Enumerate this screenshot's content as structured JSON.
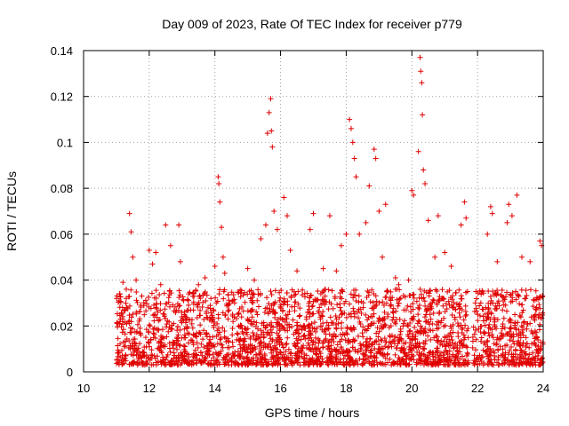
{
  "chart_data": {
    "type": "scatter",
    "title": "Day 009 of 2023, Rate Of TEC Index for receiver p779",
    "xlabel": "GPS time / hours",
    "ylabel": "ROTI / TECUs",
    "xlim": [
      10,
      24
    ],
    "ylim": [
      0,
      0.14
    ],
    "xticks": [
      10,
      12,
      14,
      16,
      18,
      20,
      22,
      24
    ],
    "xtick_labels": [
      "10",
      "12",
      "14",
      "16",
      "18",
      "20",
      "22",
      "24"
    ],
    "yticks": [
      0,
      0.02,
      0.04,
      0.06,
      0.08,
      0.1,
      0.12,
      0.14
    ],
    "ytick_labels": [
      "0",
      "0.02",
      "0.04",
      "0.06",
      "0.08",
      "0.1",
      "0.12",
      "0.14"
    ],
    "grid": true,
    "marker": "+",
    "color": "#e00000",
    "data_gaps_hours": [
      [
        14.45,
        14.5
      ],
      [
        21.72,
        21.85
      ]
    ],
    "series": [
      {
        "name": "ROTI p779",
        "points": [
          [
            11.05,
            0.021
          ],
          [
            11.1,
            0.034
          ],
          [
            11.2,
            0.039
          ],
          [
            11.3,
            0.036
          ],
          [
            11.4,
            0.069
          ],
          [
            11.45,
            0.061
          ],
          [
            11.5,
            0.05
          ],
          [
            11.6,
            0.04
          ],
          [
            12.0,
            0.053
          ],
          [
            12.1,
            0.047
          ],
          [
            12.2,
            0.052
          ],
          [
            12.35,
            0.038
          ],
          [
            12.5,
            0.064
          ],
          [
            12.65,
            0.055
          ],
          [
            12.9,
            0.064
          ],
          [
            12.95,
            0.048
          ],
          [
            13.2,
            0.034
          ],
          [
            13.5,
            0.038
          ],
          [
            13.7,
            0.041
          ],
          [
            14.0,
            0.046
          ],
          [
            14.1,
            0.085
          ],
          [
            14.12,
            0.082
          ],
          [
            14.15,
            0.074
          ],
          [
            14.2,
            0.063
          ],
          [
            14.25,
            0.05
          ],
          [
            14.3,
            0.043
          ],
          [
            14.6,
            0.03
          ],
          [
            15.0,
            0.045
          ],
          [
            15.2,
            0.04
          ],
          [
            15.4,
            0.058
          ],
          [
            15.55,
            0.064
          ],
          [
            15.6,
            0.104
          ],
          [
            15.65,
            0.113
          ],
          [
            15.7,
            0.119
          ],
          [
            15.72,
            0.105
          ],
          [
            15.75,
            0.098
          ],
          [
            15.8,
            0.07
          ],
          [
            15.9,
            0.062
          ],
          [
            16.1,
            0.076
          ],
          [
            16.2,
            0.068
          ],
          [
            16.3,
            0.053
          ],
          [
            16.5,
            0.044
          ],
          [
            16.9,
            0.062
          ],
          [
            17.0,
            0.069
          ],
          [
            17.3,
            0.045
          ],
          [
            17.5,
            0.068
          ],
          [
            17.7,
            0.044
          ],
          [
            17.85,
            0.055
          ],
          [
            18.0,
            0.06
          ],
          [
            18.1,
            0.11
          ],
          [
            18.15,
            0.106
          ],
          [
            18.2,
            0.1
          ],
          [
            18.25,
            0.093
          ],
          [
            18.3,
            0.085
          ],
          [
            18.4,
            0.06
          ],
          [
            18.6,
            0.065
          ],
          [
            18.7,
            0.081
          ],
          [
            18.85,
            0.097
          ],
          [
            18.9,
            0.093
          ],
          [
            19.0,
            0.07
          ],
          [
            19.1,
            0.05
          ],
          [
            19.2,
            0.073
          ],
          [
            19.5,
            0.041
          ],
          [
            19.6,
            0.038
          ],
          [
            19.9,
            0.04
          ],
          [
            20.0,
            0.079
          ],
          [
            20.05,
            0.077
          ],
          [
            20.2,
            0.096
          ],
          [
            20.25,
            0.137
          ],
          [
            20.27,
            0.131
          ],
          [
            20.3,
            0.126
          ],
          [
            20.32,
            0.112
          ],
          [
            20.35,
            0.088
          ],
          [
            20.4,
            0.082
          ],
          [
            20.5,
            0.066
          ],
          [
            20.7,
            0.05
          ],
          [
            20.8,
            0.068
          ],
          [
            21.0,
            0.052
          ],
          [
            21.2,
            0.046
          ],
          [
            21.5,
            0.064
          ],
          [
            21.6,
            0.074
          ],
          [
            21.65,
            0.067
          ],
          [
            21.95,
            0.035
          ],
          [
            22.1,
            0.03
          ],
          [
            22.3,
            0.06
          ],
          [
            22.4,
            0.072
          ],
          [
            22.45,
            0.069
          ],
          [
            22.6,
            0.048
          ],
          [
            22.9,
            0.065
          ],
          [
            22.95,
            0.073
          ],
          [
            23.05,
            0.068
          ],
          [
            23.2,
            0.077
          ],
          [
            23.35,
            0.05
          ],
          [
            23.6,
            0.048
          ],
          [
            23.9,
            0.057
          ],
          [
            23.95,
            0.055
          ]
        ]
      }
    ]
  }
}
